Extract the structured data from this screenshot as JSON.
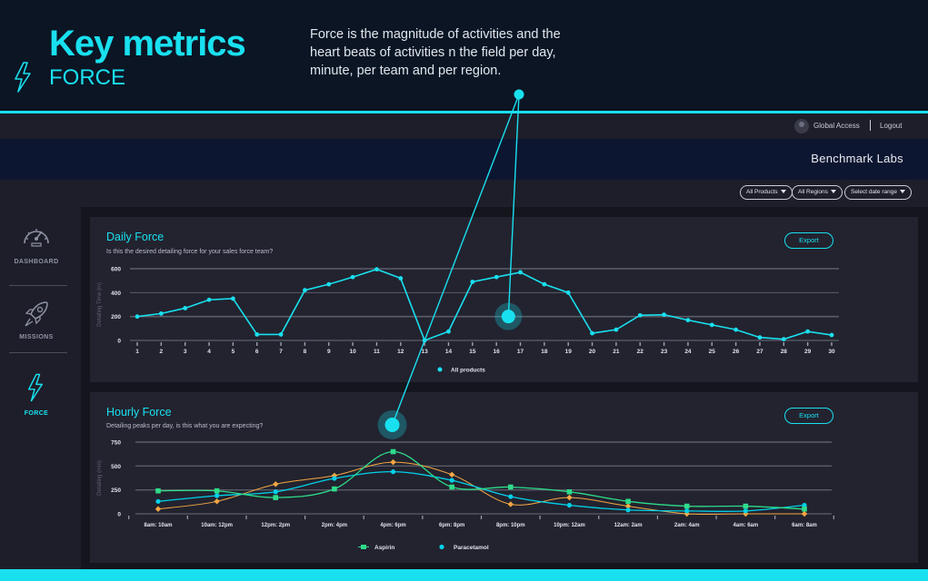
{
  "hero": {
    "title": "Key metrics",
    "subtitle": "FORCE",
    "description": "Force is the magnitude of activities and the heart beats of activities n the field per day, minute, per team and per region.",
    "icon": "lightning-bolt-icon"
  },
  "header": {
    "user_icon": "user-avatar-icon",
    "global_access": "Global Access",
    "logout": "Logout",
    "brand": "Benchmark Labs"
  },
  "filters": {
    "products": "All Products",
    "regions": "All Regions",
    "date_range": "Select date range"
  },
  "sidebar": {
    "items": [
      {
        "label": "DASHBOARD",
        "icon": "speedometer-icon",
        "active": false
      },
      {
        "label": "MISSIONS",
        "icon": "rocket-icon",
        "active": false
      },
      {
        "label": "FORCE",
        "icon": "lightning-bolt-icon",
        "active": true
      }
    ]
  },
  "colors": {
    "accent": "#19e0ef",
    "aspirin": "#2edc8a",
    "paracetamol": "#00d0e8",
    "orange": "#f5a742"
  },
  "daily": {
    "title": "Daily Force",
    "description": "Is this the desired detailing force for your sales force team?",
    "export": "Export",
    "ylabel": "Detailing Time (m)"
  },
  "hourly": {
    "title": "Hourly Force",
    "description": "Detailing peaks per day, is this what you are expecting?",
    "export": "Export",
    "ylabel": "Detailing (min)"
  },
  "chart_data": [
    {
      "type": "line",
      "title": "Daily Force",
      "ylabel": "Detailing Time (m)",
      "xlabel": "",
      "x": [
        1,
        2,
        3,
        4,
        5,
        6,
        7,
        8,
        9,
        10,
        11,
        12,
        13,
        14,
        15,
        16,
        17,
        18,
        19,
        20,
        21,
        22,
        23,
        24,
        25,
        26,
        27,
        28,
        29,
        30
      ],
      "ylim": [
        0,
        600
      ],
      "yticks": [
        0,
        200,
        400,
        600
      ],
      "grid": true,
      "legend": "bottom-center",
      "series": [
        {
          "name": "All products",
          "values": [
            200,
            225,
            270,
            340,
            350,
            50,
            50,
            420,
            470,
            530,
            595,
            520,
            0,
            75,
            490,
            530,
            570,
            470,
            400,
            60,
            90,
            210,
            215,
            170,
            130,
            90,
            25,
            10,
            75,
            45
          ]
        }
      ],
      "highlight_x": 16.5
    },
    {
      "type": "line",
      "title": "Hourly Force",
      "ylabel": "Detailing (min)",
      "xlabel": "",
      "categories": [
        "8am: 10am",
        "10am: 12pm",
        "12pm: 2pm",
        "2pm: 4pm",
        "4pm: 6pm",
        "6pm: 8pm",
        "8pm: 10pm",
        "10pm: 12am",
        "12am: 2am",
        "2am: 4am",
        "4am: 6am",
        "6am: 8am"
      ],
      "ylim": [
        0,
        750
      ],
      "yticks": [
        0,
        250,
        500,
        750
      ],
      "grid": true,
      "legend": "bottom-center",
      "series": [
        {
          "name": "Aspirin",
          "color": "#2edc8a",
          "marker": "square",
          "values": [
            240,
            240,
            170,
            260,
            650,
            280,
            280,
            230,
            130,
            80,
            80,
            50
          ]
        },
        {
          "name": "Paracetamol",
          "color": "#00d0e8",
          "marker": "circle",
          "values": [
            130,
            190,
            230,
            370,
            440,
            350,
            180,
            90,
            40,
            30,
            30,
            90
          ]
        },
        {
          "name": "",
          "color": "#f5a742",
          "marker": "diamond",
          "values": [
            50,
            130,
            310,
            400,
            540,
            410,
            100,
            170,
            80,
            0,
            0,
            0
          ]
        }
      ],
      "highlight_category": "4pm: 6pm"
    }
  ]
}
